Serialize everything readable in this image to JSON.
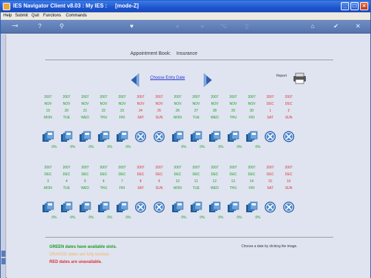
{
  "window": {
    "title": "IES Navigator Client v8.03 : My IES :",
    "mode": "[mode-Z]",
    "minimize": "_",
    "maximize": "□",
    "close": "×"
  },
  "menu": [
    "Help",
    "Submit",
    "Quit",
    "Functions",
    "Commands"
  ],
  "toolbar": {
    "key": "⊸",
    "help": "?",
    "search": "⚲",
    "heart": "♥",
    "back2": "«",
    "fwd2": "»",
    "tree": "⌥",
    "doc": "▯",
    "home": "⌂",
    "check": "✔",
    "close": "✕"
  },
  "page": {
    "heading_left": "Appointment Book:",
    "heading_right": "Insurance",
    "choose_link": "Choose Entry Date",
    "report_label": "Report"
  },
  "week1": [
    {
      "year": "2007",
      "month": "NOV",
      "date": "19",
      "dow": "MON",
      "color": "green",
      "status": "available",
      "pct": "0%"
    },
    {
      "year": "2007",
      "month": "NOV",
      "date": "20",
      "dow": "TUE",
      "color": "green",
      "status": "available",
      "pct": "0%"
    },
    {
      "year": "2007",
      "month": "NOV",
      "date": "21",
      "dow": "WED",
      "color": "green",
      "status": "available",
      "pct": "0%"
    },
    {
      "year": "2007",
      "month": "NOV",
      "date": "22",
      "dow": "THU",
      "color": "green",
      "status": "available",
      "pct": "0%"
    },
    {
      "year": "2007",
      "month": "NOV",
      "date": "23",
      "dow": "FRI",
      "color": "green",
      "status": "available",
      "pct": "0%"
    },
    {
      "year": "2007",
      "month": "NOV",
      "date": "24",
      "dow": "SAT",
      "color": "red",
      "status": "unavailable",
      "pct": ""
    },
    {
      "year": "2007",
      "month": "NOV",
      "date": "25",
      "dow": "SUN",
      "color": "red",
      "status": "unavailable",
      "pct": ""
    },
    {
      "year": "2007",
      "month": "NOV",
      "date": "26",
      "dow": "MON",
      "color": "green",
      "status": "available",
      "pct": "0%"
    },
    {
      "year": "2007",
      "month": "NOV",
      "date": "27",
      "dow": "TUE",
      "color": "green",
      "status": "available",
      "pct": "0%"
    },
    {
      "year": "2007",
      "month": "NOV",
      "date": "28",
      "dow": "WED",
      "color": "green",
      "status": "available",
      "pct": "0%"
    },
    {
      "year": "2007",
      "month": "NOV",
      "date": "29",
      "dow": "THU",
      "color": "green",
      "status": "available",
      "pct": "0%"
    },
    {
      "year": "2007",
      "month": "NOV",
      "date": "30",
      "dow": "FRI",
      "color": "green",
      "status": "available",
      "pct": "0%"
    },
    {
      "year": "2007",
      "month": "DEC",
      "date": "1",
      "dow": "SAT",
      "color": "red",
      "status": "unavailable",
      "pct": ""
    },
    {
      "year": "2007",
      "month": "DEC",
      "date": "2",
      "dow": "SUN",
      "color": "red",
      "status": "unavailable",
      "pct": ""
    }
  ],
  "week2": [
    {
      "year": "2007",
      "month": "DEC",
      "date": "3",
      "dow": "MON",
      "color": "green",
      "status": "available",
      "pct": "0%"
    },
    {
      "year": "2007",
      "month": "DEC",
      "date": "4",
      "dow": "TUE",
      "color": "green",
      "status": "available",
      "pct": "0%"
    },
    {
      "year": "2007",
      "month": "DEC",
      "date": "5",
      "dow": "WED",
      "color": "green",
      "status": "available",
      "pct": "0%"
    },
    {
      "year": "2007",
      "month": "DEC",
      "date": "6",
      "dow": "THU",
      "color": "green",
      "status": "available",
      "pct": "0%"
    },
    {
      "year": "2007",
      "month": "DEC",
      "date": "7",
      "dow": "FRI",
      "color": "green",
      "status": "available",
      "pct": "0%"
    },
    {
      "year": "2007",
      "month": "DEC",
      "date": "8",
      "dow": "SAT",
      "color": "red",
      "status": "unavailable",
      "pct": ""
    },
    {
      "year": "2007",
      "month": "DEC",
      "date": "9",
      "dow": "SUN",
      "color": "red",
      "status": "unavailable",
      "pct": ""
    },
    {
      "year": "2007",
      "month": "DEC",
      "date": "10",
      "dow": "MON",
      "color": "green",
      "status": "available",
      "pct": "0%"
    },
    {
      "year": "2007",
      "month": "DEC",
      "date": "11",
      "dow": "TUE",
      "color": "green",
      "status": "available",
      "pct": "0%"
    },
    {
      "year": "2007",
      "month": "DEC",
      "date": "12",
      "dow": "WED",
      "color": "green",
      "status": "available",
      "pct": "0%"
    },
    {
      "year": "2007",
      "month": "DEC",
      "date": "13",
      "dow": "THU",
      "color": "green",
      "status": "available",
      "pct": "0%"
    },
    {
      "year": "2007",
      "month": "DEC",
      "date": "14",
      "dow": "FRI",
      "color": "green",
      "status": "available",
      "pct": "0%"
    },
    {
      "year": "2007",
      "month": "DEC",
      "date": "15",
      "dow": "SAT",
      "color": "red",
      "status": "unavailable",
      "pct": ""
    },
    {
      "year": "2007",
      "month": "DEC",
      "date": "16",
      "dow": "SUN",
      "color": "red",
      "status": "unavailable",
      "pct": ""
    }
  ],
  "legend": {
    "green": "GREEN dates have available slots.",
    "orange": "ORANGE dates are fully booked.",
    "red": "RED dates are unavailable.",
    "hint": "Choose a date by clicking the image."
  },
  "colors": {
    "green": "#1a9a1a",
    "red": "#e03030",
    "orange": "#f3b464",
    "icon_blue": "#2f6fb0",
    "title_blue": "#1d55cf"
  }
}
